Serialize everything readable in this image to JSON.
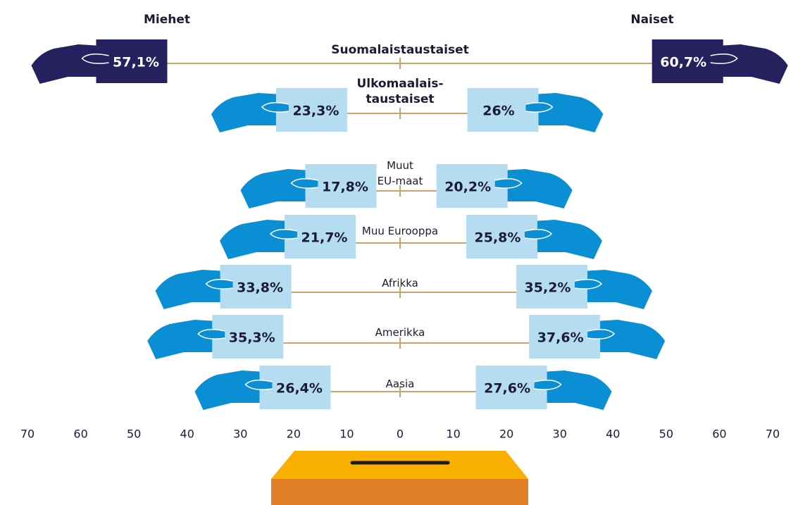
{
  "chart_data": {
    "type": "butterfly",
    "categories": [
      "Suomalaistaustaiset",
      "Ulkomaalais-\ntaustaiset",
      "Muut\nEU-maat",
      "Muu Eurooppa",
      "Afrikka",
      "Amerikka",
      "Aasia"
    ],
    "series": [
      {
        "name": "Miehet",
        "values": [
          57.1,
          23.3,
          17.8,
          21.7,
          33.8,
          35.3,
          26.4
        ],
        "value_labels": [
          "57,1%",
          "23,3%",
          "17,8%",
          "21,7%",
          "33,8%",
          "35,3%",
          "26,4%"
        ]
      },
      {
        "name": "Naiset",
        "values": [
          60.7,
          26,
          20.2,
          25.8,
          35.2,
          37.6,
          27.6
        ],
        "value_labels": [
          "60,7%",
          "26%",
          "20,2%",
          "25,8%",
          "35,2%",
          "37,6%",
          "27,6%"
        ]
      }
    ],
    "colors": [
      "#24215e",
      "#b5ddf2",
      "#b5ddf2",
      "#b5ddf2",
      "#b5ddf2",
      "#b5ddf2",
      "#b5ddf2"
    ],
    "hand_colors": [
      "#24215e",
      "#0b8fd4",
      "#0b8fd4",
      "#0b8fd4",
      "#0b8fd4",
      "#0b8fd4",
      "#0b8fd4"
    ],
    "line_color": "#c9a46a",
    "xlim": [
      -70,
      70
    ],
    "xticks": [
      {
        "value": -70,
        "label": "70"
      },
      {
        "value": -60,
        "label": "60"
      },
      {
        "value": -50,
        "label": "50"
      },
      {
        "value": -40,
        "label": "40"
      },
      {
        "value": -30,
        "label": "30"
      },
      {
        "value": -20,
        "label": "20"
      },
      {
        "value": -10,
        "label": "10"
      },
      0,
      10,
      20,
      30,
      40,
      50,
      60,
      70
    ]
  }
}
